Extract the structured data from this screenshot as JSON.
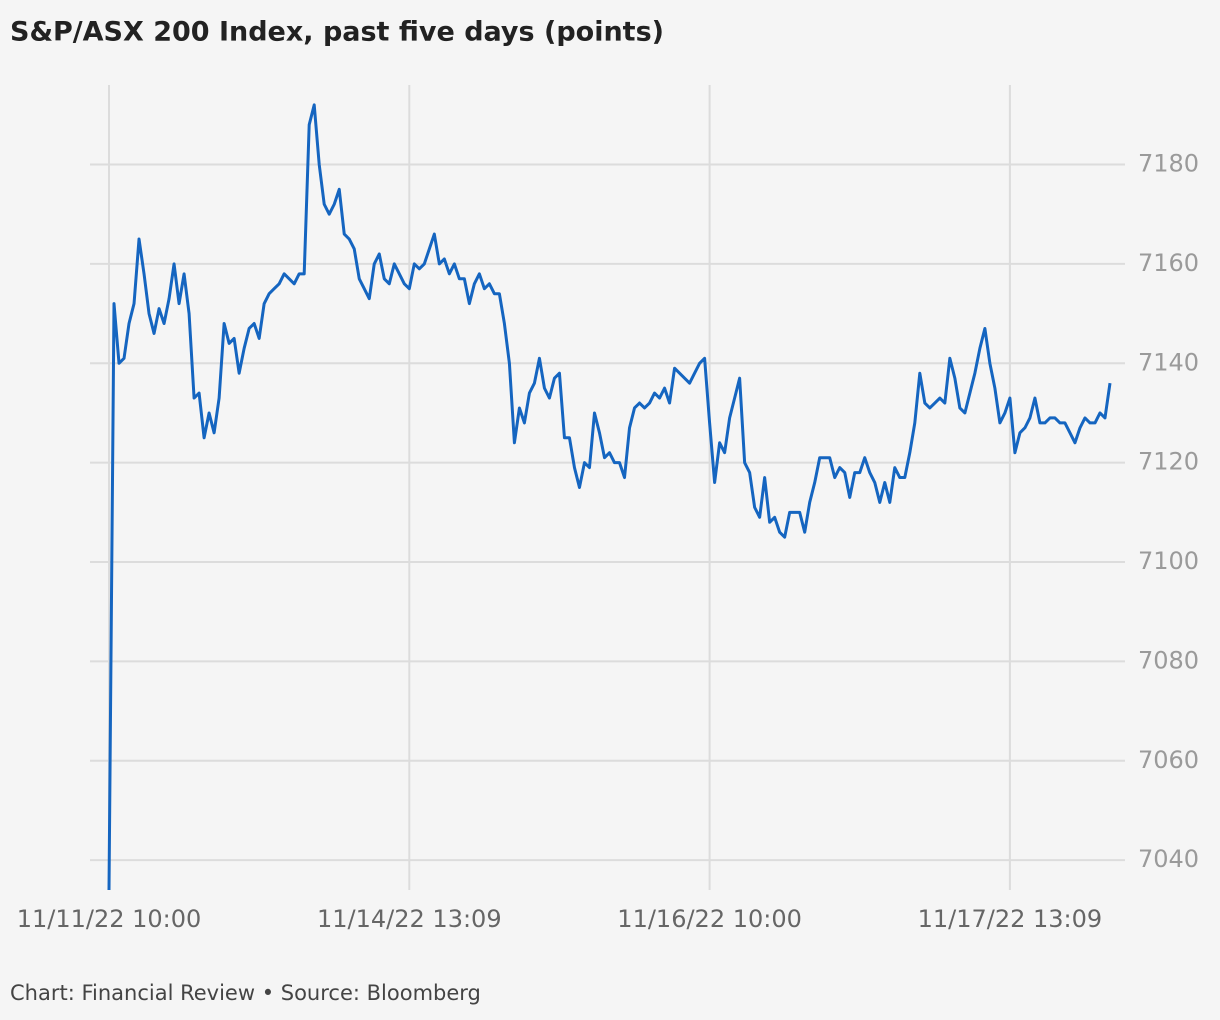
{
  "chart_data": {
    "type": "line",
    "title": "S&P/ASX 200 Index, past five days (points)",
    "footer": "Chart: Financial Review • Source: Bloomberg",
    "categories": [
      "11/11/22 10:00",
      null,
      null,
      null,
      null,
      null,
      null,
      null,
      null,
      null,
      null,
      null,
      null,
      null,
      null,
      null,
      null,
      null,
      null,
      null,
      null,
      null,
      null,
      null,
      null,
      null,
      null,
      null,
      null,
      null,
      null,
      null,
      null,
      null,
      null,
      null,
      null,
      null,
      null,
      null,
      null,
      null,
      null,
      null,
      null,
      null,
      null,
      null,
      null,
      null,
      null,
      null,
      null,
      null,
      null,
      null,
      null,
      null,
      null,
      null,
      "11/14/22 13:09",
      null,
      null,
      null,
      null,
      null,
      null,
      null,
      null,
      null,
      null,
      null,
      null,
      null,
      null,
      null,
      null,
      null,
      null,
      null,
      null,
      null,
      null,
      null,
      null,
      null,
      null,
      null,
      null,
      null,
      null,
      null,
      null,
      null,
      null,
      null,
      null,
      null,
      null,
      null,
      null,
      null,
      null,
      null,
      null,
      null,
      null,
      null,
      null,
      null,
      null,
      null,
      null,
      null,
      null,
      null,
      null,
      null,
      null,
      null,
      "11/16/22 10:00",
      null,
      null,
      null,
      null,
      null,
      null,
      null,
      null,
      null,
      null,
      null,
      null,
      null,
      null,
      null,
      null,
      null,
      null,
      null,
      null,
      null,
      null,
      null,
      null,
      null,
      null,
      null,
      null,
      null,
      null,
      null,
      null,
      null,
      null,
      null,
      null,
      null,
      null,
      null,
      null,
      null,
      null,
      null,
      null,
      null,
      null,
      null,
      null,
      null,
      null,
      null,
      null,
      null,
      null,
      null,
      null,
      null,
      null,
      null,
      "11/17/22 13:09",
      null,
      null,
      null,
      null,
      null,
      null,
      null,
      null,
      null,
      null,
      null,
      null,
      null,
      null,
      null,
      null,
      null,
      null,
      null,
      null
    ],
    "series": [
      {
        "name": "S&P/ASX 200",
        "color": "#1565c0",
        "values": [
          7034,
          7152,
          7140,
          7141,
          7148,
          7152,
          7165,
          7158,
          7150,
          7146,
          7151,
          7148,
          7153,
          7160,
          7152,
          7158,
          7150,
          7133,
          7134,
          7125,
          7130,
          7126,
          7133,
          7148,
          7144,
          7145,
          7138,
          7143,
          7147,
          7148,
          7145,
          7152,
          7154,
          7155,
          7156,
          7158,
          7157,
          7156,
          7158,
          7158,
          7188,
          7192,
          7180,
          7172,
          7170,
          7172,
          7175,
          7166,
          7165,
          7163,
          7157,
          7155,
          7153,
          7160,
          7162,
          7157,
          7156,
          7160,
          7158,
          7156,
          7155,
          7160,
          7159,
          7160,
          7163,
          7166,
          7160,
          7161,
          7158,
          7160,
          7157,
          7157,
          7152,
          7156,
          7158,
          7155,
          7156,
          7154,
          7154,
          7148,
          7140,
          7124,
          7131,
          7128,
          7134,
          7136,
          7141,
          7135,
          7133,
          7137,
          7138,
          7125,
          7125,
          7119,
          7115,
          7120,
          7119,
          7130,
          7126,
          7121,
          7122,
          7120,
          7120,
          7117,
          7127,
          7131,
          7132,
          7131,
          7132,
          7134,
          7133,
          7135,
          7132,
          7139,
          7138,
          7137,
          7136,
          7138,
          7140,
          7141,
          7128,
          7116,
          7124,
          7122,
          7129,
          7133,
          7137,
          7120,
          7118,
          7111,
          7109,
          7117,
          7108,
          7109,
          7106,
          7105,
          7110,
          7110,
          7110,
          7106,
          7112,
          7116,
          7121,
          7121,
          7121,
          7117,
          7119,
          7118,
          7113,
          7118,
          7118,
          7121,
          7118,
          7116,
          7112,
          7116,
          7112,
          7119,
          7117,
          7117,
          7122,
          7128,
          7138,
          7132,
          7131,
          7132,
          7133,
          7132,
          7141,
          7137,
          7131,
          7130,
          7134,
          7138,
          7143,
          7147,
          7140,
          7135,
          7128,
          7130,
          7133,
          7122,
          7126,
          7127,
          7129,
          7133,
          7128,
          7128,
          7129,
          7129,
          7128,
          7128,
          7126,
          7124,
          7127,
          7129,
          7128,
          7128,
          7130,
          7129,
          7136
        ]
      }
    ],
    "ylim": [
      7034,
      7196
    ],
    "yticks": [
      7040,
      7060,
      7080,
      7100,
      7120,
      7140,
      7160,
      7180
    ],
    "grid": true
  }
}
